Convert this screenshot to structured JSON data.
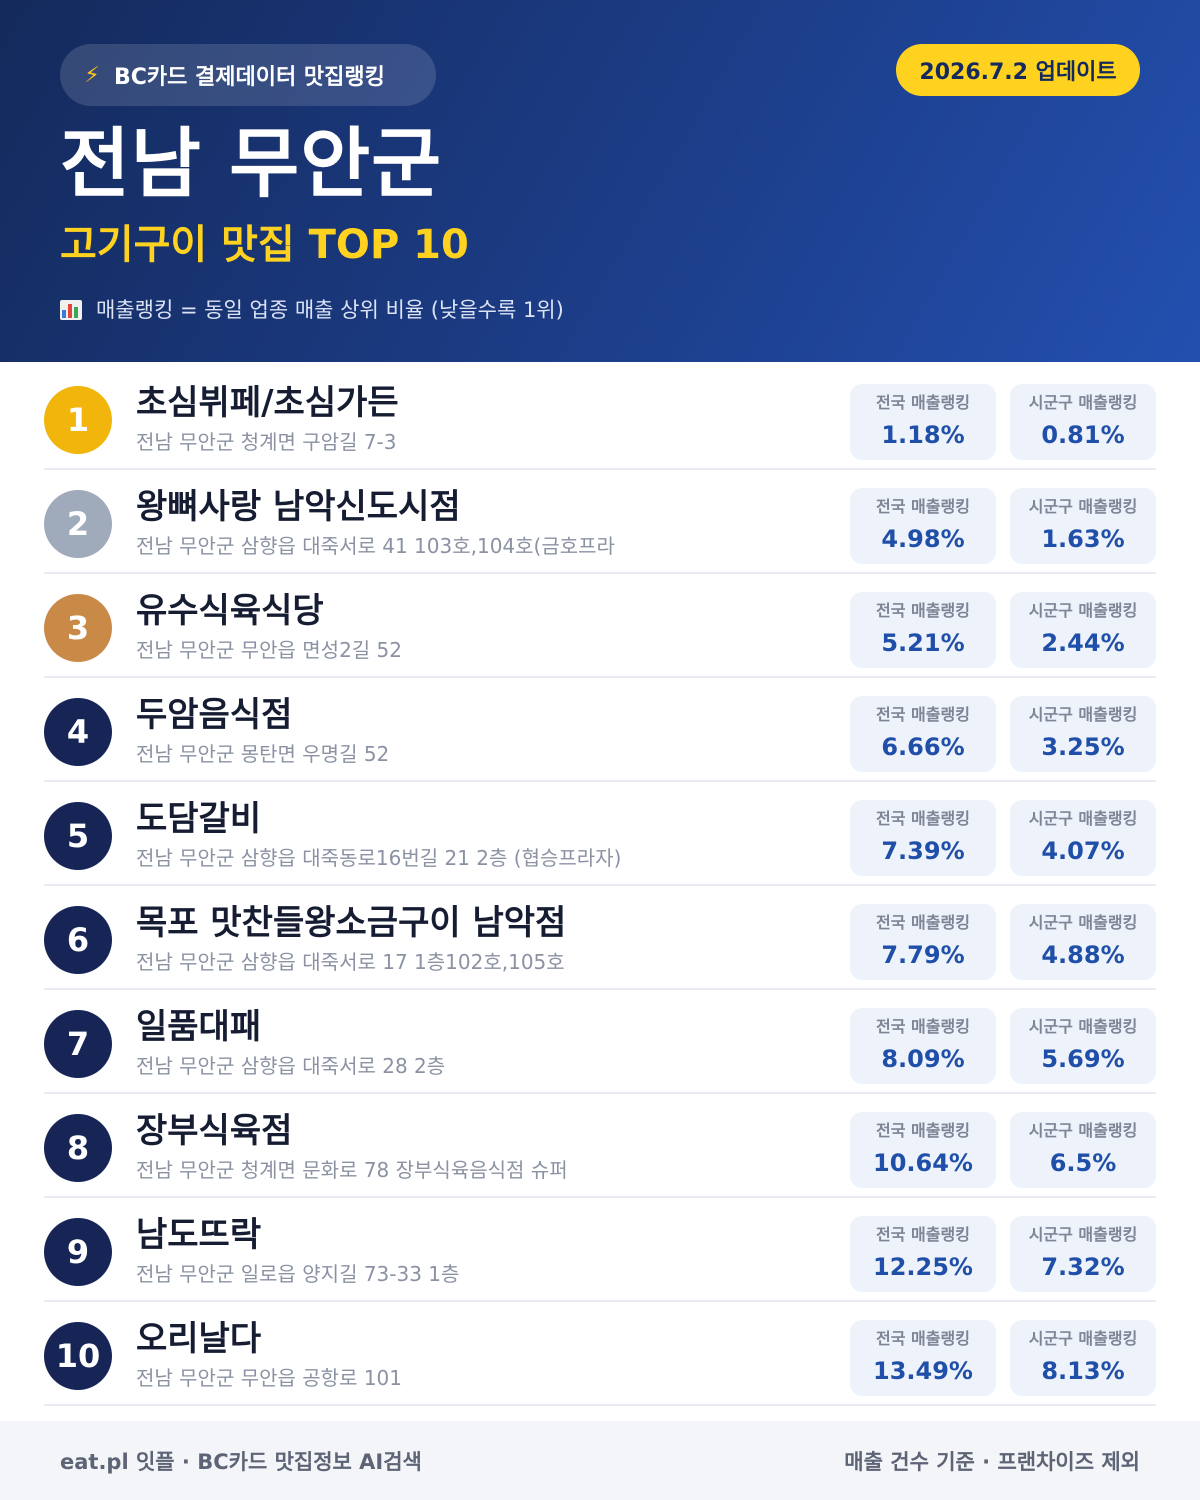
{
  "header": {
    "source_pill": "BC카드 결제데이터 맛집랭킹",
    "source_icon": "lightning-icon",
    "update": "2026.7.2 업데이트",
    "title": "전남 무안군",
    "subtitle": "고기구이 맛집 TOP 10",
    "note_icon": "bar-chart-icon",
    "note": "매출랭킹 = 동일 업종 매출 상위 비율 (낮을수록 1위)"
  },
  "colors": {
    "gold": "#f2b50c",
    "silver": "#9faabb",
    "bronze": "#c98a47",
    "navy": "#162556",
    "accent_yellow": "#ffd21f",
    "value_blue": "#1f4fa8"
  },
  "stat_labels": {
    "national": "전국 매출랭킹",
    "local": "시군구 매출랭킹"
  },
  "items": [
    {
      "rank": "1",
      "name": "초심뷔페/초심가든",
      "address": "전남 무안군 청계면 구암길 7-3",
      "national": "1.18%",
      "local": "0.81%"
    },
    {
      "rank": "2",
      "name": "왕뼈사랑 남악신도시점",
      "address": "전남 무안군 삼향읍 대죽서로 41 103호,104호(금호프라",
      "national": "4.98%",
      "local": "1.63%"
    },
    {
      "rank": "3",
      "name": "유수식육식당",
      "address": "전남 무안군 무안읍 면성2길 52",
      "national": "5.21%",
      "local": "2.44%"
    },
    {
      "rank": "4",
      "name": "두암음식점",
      "address": "전남 무안군 몽탄면 우명길 52",
      "national": "6.66%",
      "local": "3.25%"
    },
    {
      "rank": "5",
      "name": "도담갈비",
      "address": "전남 무안군 삼향읍 대죽동로16번길 21 2층 (협승프라자)",
      "national": "7.39%",
      "local": "4.07%"
    },
    {
      "rank": "6",
      "name": "목포 맛찬들왕소금구이 남악점",
      "address": "전남 무안군 삼향읍 대죽서로 17 1층102호,105호",
      "national": "7.79%",
      "local": "4.88%"
    },
    {
      "rank": "7",
      "name": "일품대패",
      "address": "전남 무안군 삼향읍 대죽서로 28 2층",
      "national": "8.09%",
      "local": "5.69%"
    },
    {
      "rank": "8",
      "name": "장부식육점",
      "address": "전남 무안군 청계면 문화로 78 장부식육음식점 슈퍼",
      "national": "10.64%",
      "local": "6.5%"
    },
    {
      "rank": "9",
      "name": "남도뜨락",
      "address": "전남 무안군 일로읍 양지길 73-33 1층",
      "national": "12.25%",
      "local": "7.32%"
    },
    {
      "rank": "10",
      "name": "오리날다",
      "address": "전남 무안군 무안읍 공항로 101",
      "national": "13.49%",
      "local": "8.13%"
    }
  ],
  "footer": {
    "left": "eat.pl 잇플 · BC카드 맛집정보 AI검색",
    "right": "매출 건수 기준 · 프랜차이즈 제외"
  }
}
